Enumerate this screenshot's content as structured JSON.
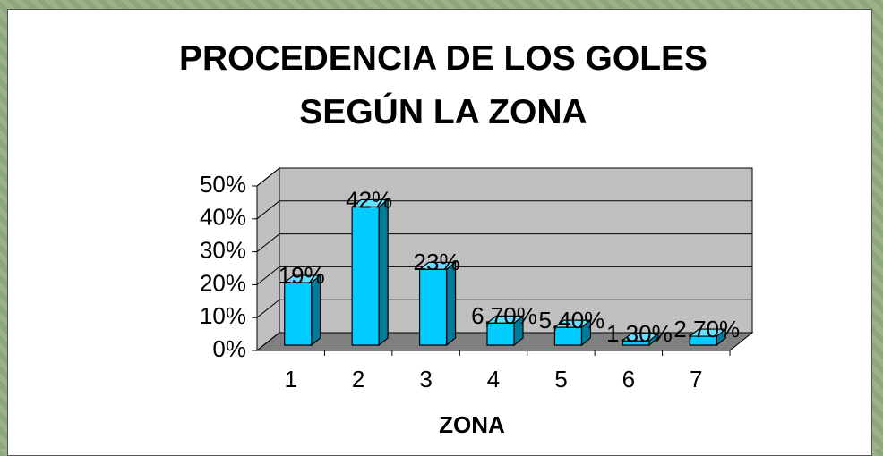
{
  "chart_data": {
    "type": "bar3d",
    "title": "PROCEDENCIA DE LOS GOLES SEGÚN LA ZONA",
    "x_label": "ZONA",
    "categories": [
      "1",
      "2",
      "3",
      "4",
      "5",
      "6",
      "7"
    ],
    "values": [
      19,
      42,
      23,
      6.7,
      5.4,
      1.3,
      2.7
    ],
    "value_labels": [
      "19%",
      "42%",
      "23%",
      "6,70%",
      "5,40%",
      "1,30%",
      "2,70%"
    ],
    "color": "#00ccff",
    "ylim": [
      0,
      50
    ],
    "yticks": [
      {
        "value": 0,
        "label": "0%"
      },
      {
        "value": 10,
        "label": "10%"
      },
      {
        "value": 20,
        "label": "20%"
      },
      {
        "value": 30,
        "label": "30%"
      },
      {
        "value": 40,
        "label": "40%"
      },
      {
        "value": 50,
        "label": "50%"
      }
    ],
    "grid": true
  }
}
